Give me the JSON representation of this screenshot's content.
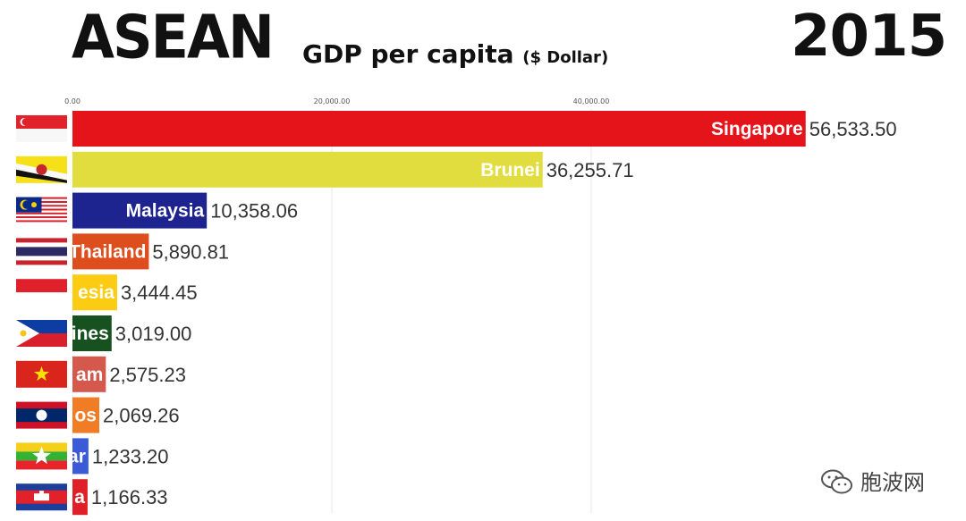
{
  "header": {
    "title": "ASEAN",
    "subtitle": "GDP per capita",
    "unit": "($ Dollar)",
    "year": "2015"
  },
  "watermark": "胞波网",
  "chart_data": {
    "type": "bar",
    "orientation": "horizontal",
    "title": "ASEAN GDP per capita ($ Dollar)",
    "year": "2015",
    "x_ticks": [
      0,
      20000,
      40000
    ],
    "x_tick_labels": [
      "0.00",
      "20,000.00",
      "40,000.00"
    ],
    "xlim": [
      0,
      60000
    ],
    "categories": [
      "Singapore",
      "Brunei",
      "Malaysia",
      "Thailand",
      "Indonesia",
      "Philippines",
      "Vietnam",
      "Laos",
      "Myanmar",
      "Cambodia"
    ],
    "bar_labels": [
      "Singapore",
      "Brunei",
      "Malaysia",
      "Thailand",
      "esia",
      "ines",
      "am",
      "os",
      "ar",
      "a"
    ],
    "values": [
      56533.5,
      36255.71,
      10358.06,
      5890.81,
      3444.45,
      3019.0,
      2575.23,
      2069.26,
      1233.2,
      1166.33
    ],
    "value_labels": [
      "56,533.50",
      "36,255.71",
      "10,358.06",
      "5,890.81",
      "3,444.45",
      "3,019.00",
      "2,575.23",
      "2,069.26",
      "1,233.20",
      "1,166.33"
    ],
    "colors": [
      "#e5141b",
      "#e2dd3e",
      "#1d2490",
      "#dd4d1e",
      "#fccc12",
      "#16511f",
      "#d5584c",
      "#f07c26",
      "#3a5ad8",
      "#de2128"
    ],
    "flags": [
      "singapore-flag",
      "brunei-flag",
      "malaysia-flag",
      "thailand-flag",
      "indonesia-flag",
      "philippines-flag",
      "vietnam-flag",
      "laos-flag",
      "myanmar-flag",
      "cambodia-flag"
    ],
    "grid": true
  }
}
